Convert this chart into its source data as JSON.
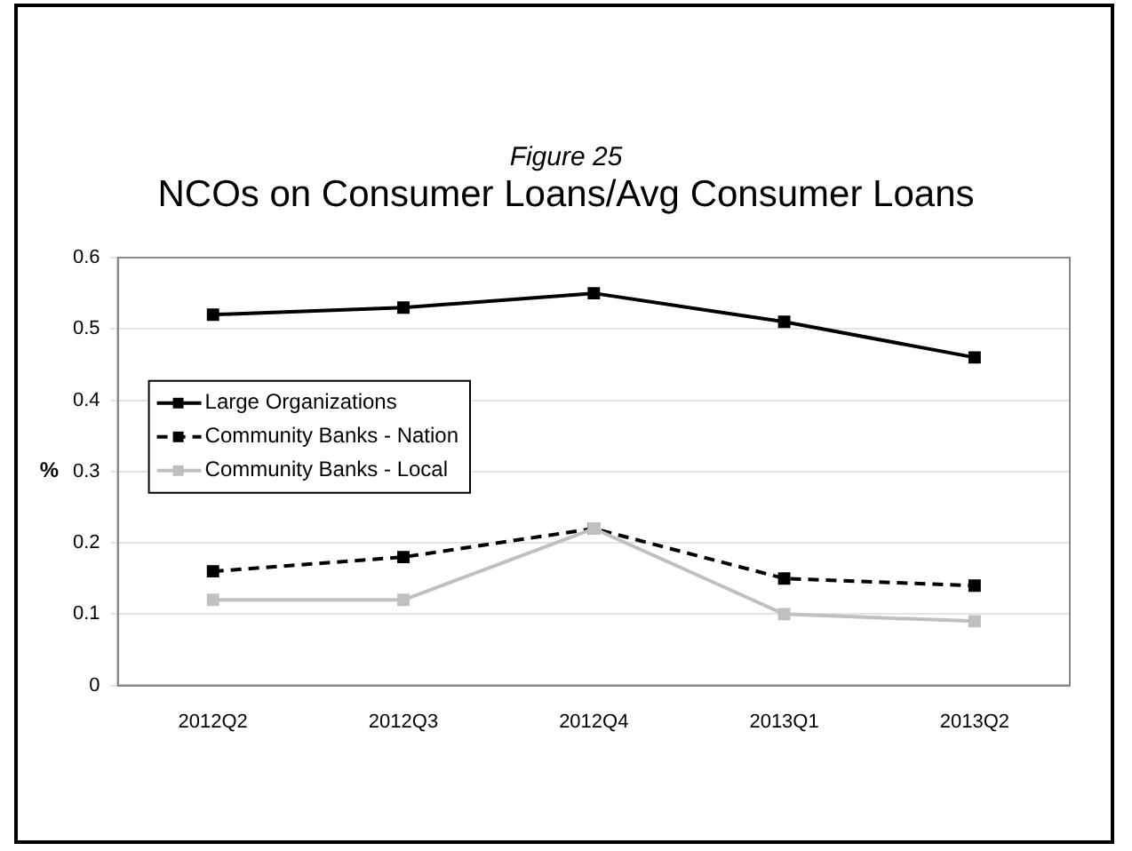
{
  "chart_data": {
    "type": "line",
    "title": "NCOs on Consumer Loans/Avg Consumer Loans",
    "subtitle": "Figure 25",
    "ylabel": "%",
    "categories": [
      "2012Q2",
      "2012Q3",
      "2012Q4",
      "2013Q1",
      "2013Q2"
    ],
    "series": [
      {
        "name": "Large Organizations",
        "color": "#000000",
        "line_style": "solid",
        "values": [
          0.52,
          0.53,
          0.55,
          0.51,
          0.46
        ]
      },
      {
        "name": "Community Banks - Nation",
        "color": "#000000",
        "line_style": "dashed",
        "values": [
          0.16,
          0.18,
          0.22,
          0.15,
          0.14
        ]
      },
      {
        "name": "Community Banks - Local",
        "color": "#c0c0c0",
        "line_style": "solid",
        "values": [
          0.12,
          0.12,
          0.22,
          0.1,
          0.09
        ]
      }
    ],
    "ylim": [
      0,
      0.6
    ],
    "yticks": [
      0,
      0.1,
      0.2,
      0.3,
      0.4,
      0.5,
      0.6
    ],
    "grid": "y",
    "legend": "left",
    "marker": "square"
  }
}
